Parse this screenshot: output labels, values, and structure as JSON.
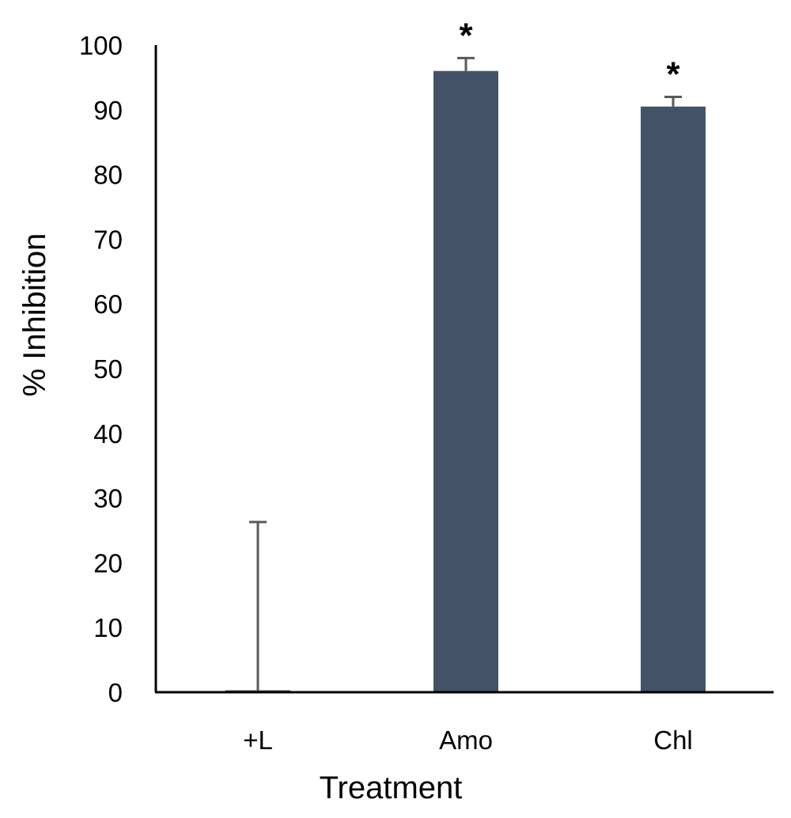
{
  "chart_data": {
    "type": "bar",
    "title": "",
    "xlabel": "Treatment",
    "ylabel": "% Inhibition",
    "categories": [
      "+L",
      "Amo",
      "Chl"
    ],
    "values": [
      0.3,
      96,
      90.5
    ],
    "error_bars": [
      26,
      2,
      1.5
    ],
    "annotations": [
      "",
      "*",
      "*"
    ],
    "ylim": [
      0,
      100
    ],
    "yticks": [
      "0",
      "10",
      "20",
      "30",
      "40",
      "50",
      "60",
      "70",
      "80",
      "90",
      "100"
    ],
    "grid": false,
    "legend": "none",
    "colors": {
      "bar": "#435266",
      "error_bar": "#595959",
      "axis": "#000000"
    }
  }
}
